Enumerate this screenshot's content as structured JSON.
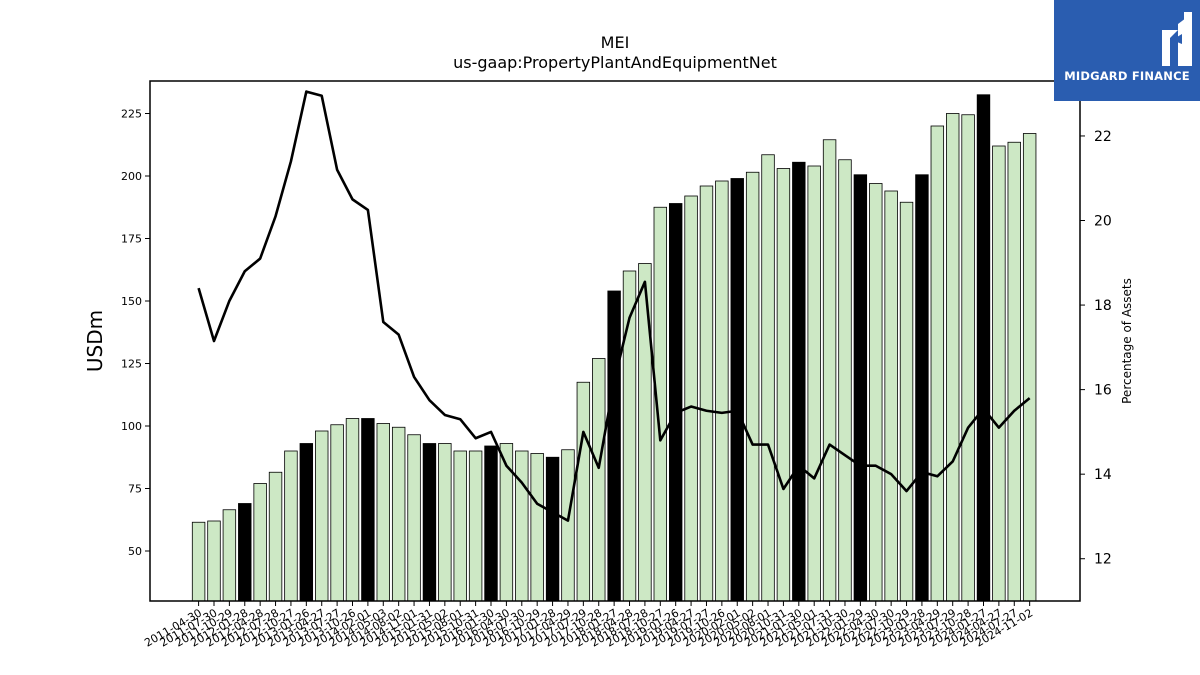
{
  "logo": {
    "text": "MIDGARD FINANCE",
    "icon": "midgard-logo-icon",
    "background": "#2a5db0"
  },
  "chart_data": {
    "type": "bar",
    "title": "MEI",
    "subtitle": "us-gaap:PropertyPlantAndEquipmentNet",
    "ylabel": "USDm",
    "y2label": "Percentage of Assets",
    "ylim": [
      30,
      238
    ],
    "y2lim": [
      11,
      23.3
    ],
    "yticks": [
      50,
      75,
      100,
      125,
      150,
      175,
      200,
      225
    ],
    "y2ticks": [
      12,
      14,
      16,
      18,
      20,
      22
    ],
    "colors": {
      "bar": "#cde8c5",
      "bar_highlight": "#000000",
      "edge": "#000000",
      "line": "#000000"
    },
    "categories": [
      "2011-04-30",
      "2011-07-30",
      "2011-10-29",
      "2012-01-28",
      "2012-04-28",
      "2012-07-28",
      "2012-10-27",
      "2013-01-26",
      "2013-04-27",
      "2013-07-27",
      "2013-10-26",
      "2014-02-01",
      "2014-05-03",
      "2014-08-02",
      "2014-11-01",
      "2015-01-31",
      "2015-05-02",
      "2015-08-01",
      "2015-10-31",
      "2016-01-30",
      "2016-04-30",
      "2016-07-30",
      "2016-10-29",
      "2017-01-28",
      "2017-04-29",
      "2017-07-29",
      "2017-10-28",
      "2018-01-27",
      "2018-04-28",
      "2018-07-28",
      "2018-10-27",
      "2019-01-26",
      "2019-04-27",
      "2019-07-27",
      "2019-10-26",
      "2020-02-01",
      "2020-05-02",
      "2020-08-01",
      "2020-10-31",
      "2021-01-30",
      "2021-05-01",
      "2021-07-31",
      "2021-10-30",
      "2022-01-29",
      "2022-04-30",
      "2022-07-30",
      "2022-10-29",
      "2023-01-28",
      "2023-04-29",
      "2023-07-29",
      "2023-10-28",
      "2024-01-27",
      "2024-04-27",
      "2024-07-27",
      "2024-11-02"
    ],
    "visible_tick_labels": [
      "2011-04-30",
      "2011-07-30",
      "2011-10-29",
      "2012-01-28",
      "2012-04-28",
      "2012-07-28",
      "2012-10-27",
      "2013-01-26",
      "2013-04-27",
      "2013-07-27",
      "2013-10-26",
      "2014-02-01",
      "2014-05-03",
      "2014-08-02",
      "2014-11-01",
      "2015-01-31",
      "2015-05-02",
      "2015-08-01",
      "2015-10-31",
      "2016-01-30",
      "2016-04-30",
      "2016-07-30",
      "2016-10-29",
      "2017-01-28",
      "2017-04-29",
      "2017-07-29",
      "2017-10-28",
      "2018-01-27",
      "2018-04-28",
      "2018-07-28",
      "2018-10-27",
      "2019-01-26",
      "2019-04-27",
      "2019-07-27",
      "2019-10-26",
      "2020-02-01",
      "2020-05-02",
      "2020-08-01",
      "2020-10-31",
      "2021-01-30",
      "2021-05-01",
      "2021-07-31",
      "2021-10-30",
      "2022-01-29",
      "2022-04-30",
      "2022-07-30",
      "2022-10-29",
      "2023-01-28",
      "2023-04-29",
      "2023-07-29",
      "2023-10-28",
      "2024-01-27",
      "2024-04-27",
      "2024-07-27",
      "2024-11-02"
    ],
    "series": [
      {
        "type": "bar",
        "axis": "left",
        "values": [
          61.5,
          62,
          66.5,
          69,
          77,
          81.5,
          90,
          93,
          98,
          100.5,
          103,
          103,
          101,
          99.5,
          96.5,
          93,
          93,
          90,
          90,
          92,
          93,
          90,
          89,
          87.5,
          90.5,
          117.5,
          127,
          154,
          162,
          165,
          187.5,
          189,
          192,
          196,
          198,
          199,
          201.5,
          208.5,
          203,
          205.5,
          204,
          214.5,
          206.5,
          200.5,
          197,
          194,
          189.5,
          200.5,
          220,
          225,
          224.5,
          232.5,
          212,
          213.5,
          217
        ],
        "highlight": [
          false,
          false,
          false,
          true,
          false,
          false,
          false,
          true,
          false,
          false,
          false,
          true,
          false,
          false,
          false,
          true,
          false,
          false,
          false,
          true,
          false,
          false,
          false,
          true,
          false,
          false,
          false,
          true,
          false,
          false,
          false,
          true,
          false,
          false,
          false,
          true,
          false,
          false,
          false,
          true,
          false,
          false,
          false,
          true,
          false,
          false,
          false,
          true,
          false,
          false,
          false,
          true,
          false,
          false,
          false
        ]
      },
      {
        "type": "line",
        "axis": "right",
        "values": [
          18.4,
          17.15,
          18.1,
          18.8,
          19.1,
          20.1,
          21.4,
          23.05,
          22.95,
          21.2,
          20.5,
          20.25,
          17.6,
          17.3,
          16.3,
          15.75,
          15.4,
          15.3,
          14.85,
          15,
          14.2,
          13.8,
          13.3,
          13.1,
          12.9,
          15,
          14.15,
          16.2,
          17.7,
          18.55,
          14.8,
          15.45,
          15.6,
          15.5,
          15.45,
          15.5,
          14.7,
          14.7,
          13.65,
          14.2,
          13.9,
          14.7,
          14.45,
          14.2,
          14.2,
          14,
          13.6,
          14.05,
          13.95,
          14.3,
          15.1,
          15.55,
          15.1,
          15.5,
          15.8
        ]
      }
    ]
  }
}
